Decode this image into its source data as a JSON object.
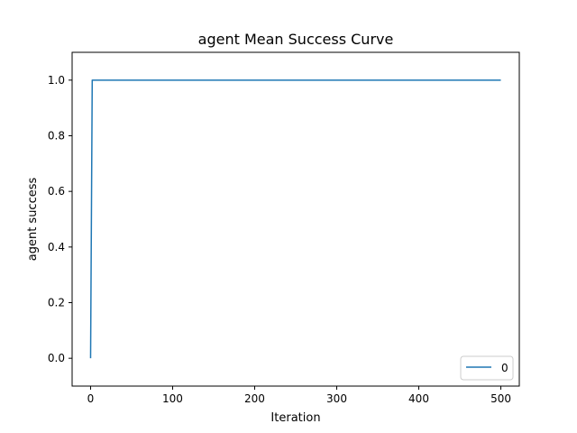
{
  "chart_data": {
    "type": "line",
    "title": "agent Mean Success Curve",
    "xlabel": "Iteration",
    "ylabel": "agent success",
    "xlim": [
      -22.5,
      522.5
    ],
    "ylim": [
      -0.1,
      1.1
    ],
    "xticks": [
      0,
      100,
      200,
      300,
      400,
      500
    ],
    "yticks": [
      0.0,
      0.2,
      0.4,
      0.6,
      0.8,
      1.0
    ],
    "xtick_labels": [
      "0",
      "100",
      "200",
      "300",
      "400",
      "500"
    ],
    "ytick_labels": [
      "0.0",
      "0.2",
      "0.4",
      "0.6",
      "0.8",
      "1.0"
    ],
    "grid": false,
    "legend_position": "lower-right",
    "series": [
      {
        "name": "0",
        "color": "#1f77b4",
        "x": [
          0,
          2,
          500
        ],
        "y": [
          0.0,
          1.0,
          1.0
        ]
      }
    ]
  }
}
